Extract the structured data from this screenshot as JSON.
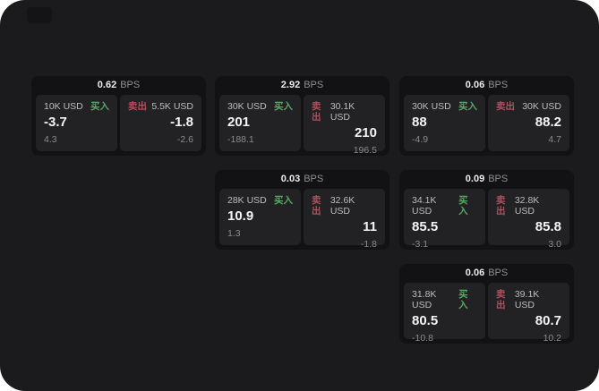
{
  "labels": {
    "bps": "BPS",
    "buy": "买入",
    "sell": "卖出"
  },
  "colors": {
    "buy_accent": "#58a766",
    "sell_accent": "#b24e5e",
    "app_background": "#1b1b1d",
    "card_background": "#121214",
    "panel_background": "#222224"
  },
  "cards": [
    {
      "bps": "0.62",
      "buy": {
        "amount": "10K USD",
        "price": "-3.7",
        "delta": "4.3"
      },
      "sell": {
        "amount": "5.5K USD",
        "price": "-1.8",
        "delta": "-2.6"
      }
    },
    {
      "bps": "2.92",
      "buy": {
        "amount": "30K USD",
        "price": "201",
        "delta": "-188.1"
      },
      "sell": {
        "amount": "30.1K USD",
        "price": "210",
        "delta": "196.5"
      }
    },
    {
      "bps": "0.06",
      "buy": {
        "amount": "30K USD",
        "price": "88",
        "delta": "-4.9"
      },
      "sell": {
        "amount": "30K USD",
        "price": "88.2",
        "delta": "4.7"
      }
    },
    {
      "bps": "0.03",
      "buy": {
        "amount": "28K USD",
        "price": "10.9",
        "delta": "1.3"
      },
      "sell": {
        "amount": "32.6K USD",
        "price": "11",
        "delta": "-1.8"
      }
    },
    {
      "bps": "0.09",
      "buy": {
        "amount": "34.1K USD",
        "price": "85.5",
        "delta": "-3.1"
      },
      "sell": {
        "amount": "32.8K USD",
        "price": "85.8",
        "delta": "3.0"
      }
    },
    {
      "bps": "0.06",
      "buy": {
        "amount": "31.8K USD",
        "price": "80.5",
        "delta": "-10.8"
      },
      "sell": {
        "amount": "39.1K USD",
        "price": "80.7",
        "delta": "10.2"
      }
    }
  ]
}
